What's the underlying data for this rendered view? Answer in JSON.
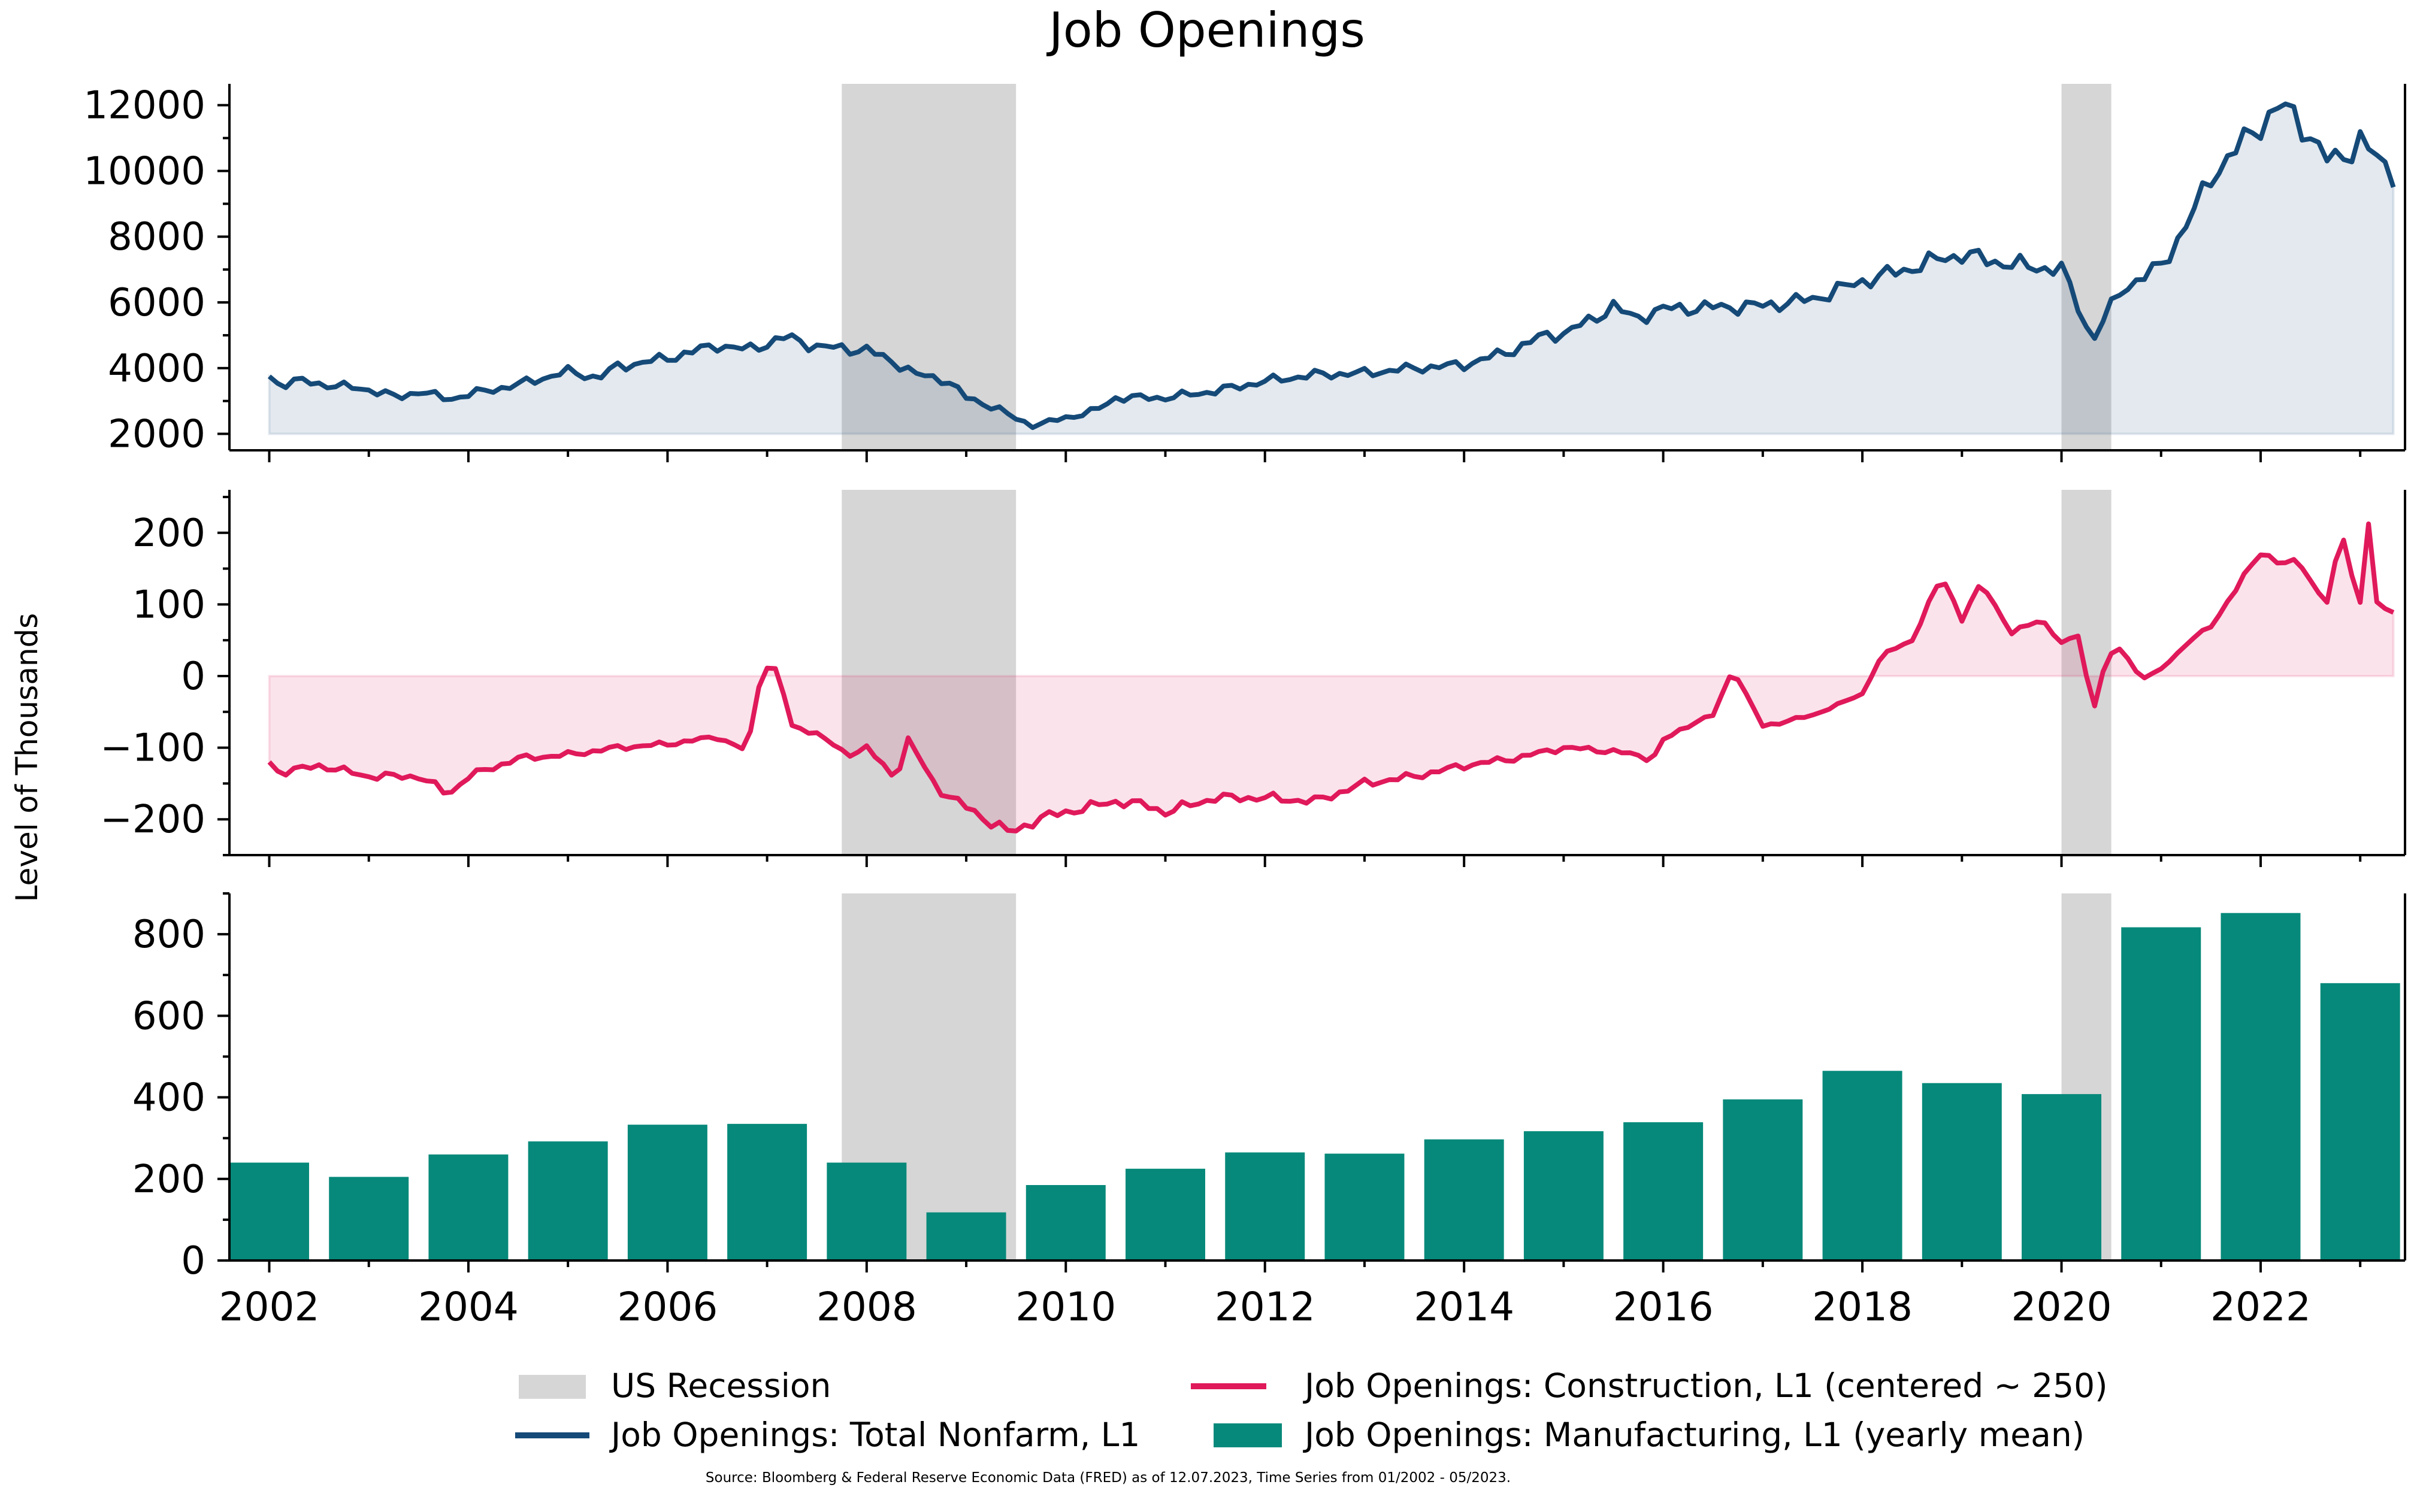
{
  "chart_data": {
    "type": "line",
    "title": "Job Openings",
    "ylabel": "Level of Thousands",
    "source_note": "Source: Bloomberg & Federal Reserve Economic Data (FRED) as of 12.07.2023, Time Series from 01/2002 - 05/2023.",
    "x_range": [
      2001.6,
      2023.45
    ],
    "x_ticks": [
      2002,
      2004,
      2006,
      2008,
      2010,
      2012,
      2014,
      2016,
      2018,
      2020,
      2022
    ],
    "recessions": [
      [
        2007.75,
        2009.5
      ],
      [
        2020.0,
        2020.5
      ]
    ],
    "colors": {
      "total": "#154a78",
      "construction": "#e0195b",
      "manufacturing": "#06897a",
      "recession": "#d6d6d6"
    },
    "legend": {
      "recession": "US Recession",
      "total": "Job Openings: Total Nonfarm, L1",
      "construction": "Job Openings: Construction, L1 (centered ~ 250)",
      "manufacturing": "Job Openings: Manufacturing, L1 (yearly mean)"
    },
    "panels": [
      {
        "key": "total",
        "type": "area-line",
        "ylim": [
          1500,
          12650
        ],
        "baseline": 2000,
        "yticks": [
          2000,
          4000,
          6000,
          8000,
          10000,
          12000
        ],
        "anchors": [
          [
            2002.0,
            3750
          ],
          [
            2002.1,
            3500
          ],
          [
            2002.3,
            3620
          ],
          [
            2002.5,
            3520
          ],
          [
            2003.0,
            3350
          ],
          [
            2003.3,
            3100
          ],
          [
            2003.5,
            3300
          ],
          [
            2003.8,
            3050
          ],
          [
            2004.0,
            3200
          ],
          [
            2004.5,
            3500
          ],
          [
            2005.0,
            3900
          ],
          [
            2005.3,
            3700
          ],
          [
            2005.5,
            4050
          ],
          [
            2006.0,
            4300
          ],
          [
            2006.5,
            4700
          ],
          [
            2006.8,
            4550
          ],
          [
            2007.0,
            4750
          ],
          [
            2007.2,
            4950
          ],
          [
            2007.5,
            4650
          ],
          [
            2008.0,
            4550
          ],
          [
            2008.3,
            4150
          ],
          [
            2008.5,
            3800
          ],
          [
            2008.8,
            3650
          ],
          [
            2009.0,
            3100
          ],
          [
            2009.3,
            2800
          ],
          [
            2009.5,
            2450
          ],
          [
            2009.7,
            2250
          ],
          [
            2010.0,
            2500
          ],
          [
            2010.3,
            2700
          ],
          [
            2010.5,
            3100
          ],
          [
            2011.0,
            3100
          ],
          [
            2011.5,
            3300
          ],
          [
            2012.0,
            3600
          ],
          [
            2012.5,
            3800
          ],
          [
            2013.0,
            3850
          ],
          [
            2013.5,
            4000
          ],
          [
            2014.0,
            4100
          ],
          [
            2014.5,
            4550
          ],
          [
            2014.8,
            5000
          ],
          [
            2015.0,
            5050
          ],
          [
            2015.3,
            5500
          ],
          [
            2015.5,
            5900
          ],
          [
            2015.7,
            5500
          ],
          [
            2016.0,
            5800
          ],
          [
            2016.5,
            5850
          ],
          [
            2017.0,
            5900
          ],
          [
            2017.5,
            6100
          ],
          [
            2018.0,
            6650
          ],
          [
            2018.5,
            7050
          ],
          [
            2018.8,
            7350
          ],
          [
            2019.0,
            7450
          ],
          [
            2019.5,
            7150
          ],
          [
            2020.0,
            7000
          ],
          [
            2020.2,
            5700
          ],
          [
            2020.3,
            4800
          ],
          [
            2020.6,
            6400
          ],
          [
            2021.0,
            7100
          ],
          [
            2021.3,
            8600
          ],
          [
            2021.5,
            9800
          ],
          [
            2021.7,
            10500
          ],
          [
            2022.0,
            11400
          ],
          [
            2022.2,
            12050
          ],
          [
            2022.5,
            11100
          ],
          [
            2022.7,
            10200
          ],
          [
            2022.9,
            10600
          ],
          [
            2023.0,
            11000
          ],
          [
            2023.2,
            10200
          ],
          [
            2023.35,
            9900
          ],
          [
            2023.42,
            9800
          ]
        ]
      },
      {
        "key": "construction",
        "type": "area-line",
        "ylim": [
          -250,
          260
        ],
        "baseline": 0,
        "yticks": [
          -200,
          -100,
          0,
          100,
          200
        ],
        "anchors": [
          [
            2002.0,
            -120
          ],
          [
            2002.1,
            -135
          ],
          [
            2002.5,
            -125
          ],
          [
            2003.0,
            -140
          ],
          [
            2003.5,
            -140
          ],
          [
            2003.8,
            -165
          ],
          [
            2004.0,
            -140
          ],
          [
            2004.5,
            -115
          ],
          [
            2005.0,
            -110
          ],
          [
            2005.5,
            -100
          ],
          [
            2006.0,
            -95
          ],
          [
            2006.5,
            -85
          ],
          [
            2006.8,
            -105
          ],
          [
            2006.95,
            12
          ],
          [
            2007.1,
            10
          ],
          [
            2007.25,
            -70
          ],
          [
            2007.5,
            -80
          ],
          [
            2007.8,
            -110
          ],
          [
            2008.0,
            -100
          ],
          [
            2008.3,
            -145
          ],
          [
            2008.4,
            -85
          ],
          [
            2008.7,
            -155
          ],
          [
            2008.9,
            -175
          ],
          [
            2009.2,
            -200
          ],
          [
            2009.45,
            -220
          ],
          [
            2009.7,
            -200
          ],
          [
            2010.0,
            -190
          ],
          [
            2010.5,
            -175
          ],
          [
            2010.8,
            -180
          ],
          [
            2011.0,
            -190
          ],
          [
            2011.5,
            -170
          ],
          [
            2012.0,
            -170
          ],
          [
            2012.5,
            -175
          ],
          [
            2013.0,
            -150
          ],
          [
            2013.5,
            -140
          ],
          [
            2014.0,
            -125
          ],
          [
            2014.5,
            -115
          ],
          [
            2015.0,
            -100
          ],
          [
            2015.5,
            -105
          ],
          [
            2015.9,
            -115
          ],
          [
            2016.0,
            -90
          ],
          [
            2016.3,
            -65
          ],
          [
            2016.5,
            -55
          ],
          [
            2016.7,
            10
          ],
          [
            2017.0,
            -70
          ],
          [
            2017.5,
            -55
          ],
          [
            2018.0,
            -25
          ],
          [
            2018.2,
            30
          ],
          [
            2018.5,
            50
          ],
          [
            2018.8,
            140
          ],
          [
            2019.0,
            80
          ],
          [
            2019.2,
            130
          ],
          [
            2019.5,
            60
          ],
          [
            2019.8,
            80
          ],
          [
            2020.0,
            45
          ],
          [
            2020.2,
            60
          ],
          [
            2020.3,
            -60
          ],
          [
            2020.45,
            25
          ],
          [
            2020.6,
            40
          ],
          [
            2020.8,
            -5
          ],
          [
            2021.0,
            10
          ],
          [
            2021.3,
            50
          ],
          [
            2021.5,
            70
          ],
          [
            2021.8,
            130
          ],
          [
            2022.0,
            175
          ],
          [
            2022.2,
            155
          ],
          [
            2022.4,
            160
          ],
          [
            2022.6,
            110
          ],
          [
            2022.7,
            100
          ],
          [
            2022.8,
            210
          ],
          [
            2023.0,
            100
          ],
          [
            2023.1,
            235
          ],
          [
            2023.2,
            35
          ],
          [
            2023.3,
            150
          ],
          [
            2023.35,
            65
          ],
          [
            2023.42,
            115
          ]
        ]
      },
      {
        "key": "manufacturing",
        "type": "bar",
        "ylim": [
          0,
          900
        ],
        "yticks": [
          0,
          200,
          400,
          600,
          800
        ],
        "years": [
          2002,
          2003,
          2004,
          2005,
          2006,
          2007,
          2008,
          2009,
          2010,
          2011,
          2012,
          2013,
          2014,
          2015,
          2016,
          2017,
          2018,
          2019,
          2020,
          2021,
          2022,
          2023
        ],
        "values": [
          240,
          205,
          260,
          292,
          333,
          335,
          240,
          118,
          185,
          225,
          265,
          262,
          297,
          317,
          339,
          395,
          465,
          435,
          408,
          817,
          852,
          680
        ]
      }
    ]
  }
}
